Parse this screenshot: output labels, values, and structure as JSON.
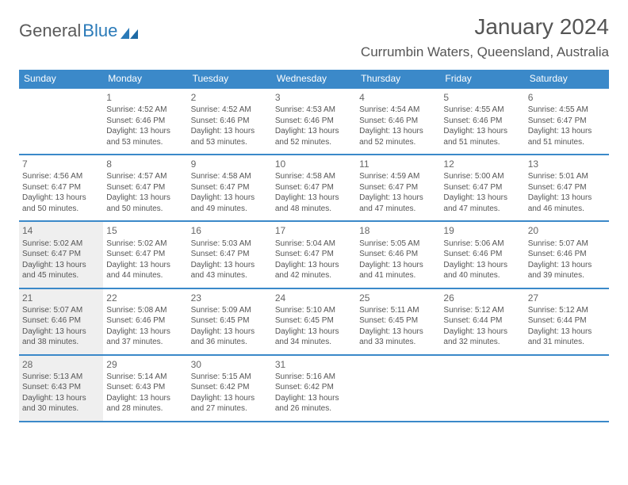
{
  "logo": {
    "word1": "General",
    "word2": "Blue"
  },
  "title": "January 2024",
  "location": "Currumbin Waters, Queensland, Australia",
  "colors": {
    "header_bg": "#3b89c9",
    "header_text": "#ffffff",
    "border": "#3b89c9",
    "shaded_bg": "#efefef",
    "text": "#555555"
  },
  "day_headers": [
    "Sunday",
    "Monday",
    "Tuesday",
    "Wednesday",
    "Thursday",
    "Friday",
    "Saturday"
  ],
  "weeks": [
    [
      {
        "n": "",
        "sr": "",
        "ss": "",
        "dl1": "",
        "dl2": "",
        "shade": false
      },
      {
        "n": "1",
        "sr": "Sunrise: 4:52 AM",
        "ss": "Sunset: 6:46 PM",
        "dl1": "Daylight: 13 hours",
        "dl2": "and 53 minutes.",
        "shade": false
      },
      {
        "n": "2",
        "sr": "Sunrise: 4:52 AM",
        "ss": "Sunset: 6:46 PM",
        "dl1": "Daylight: 13 hours",
        "dl2": "and 53 minutes.",
        "shade": false
      },
      {
        "n": "3",
        "sr": "Sunrise: 4:53 AM",
        "ss": "Sunset: 6:46 PM",
        "dl1": "Daylight: 13 hours",
        "dl2": "and 52 minutes.",
        "shade": false
      },
      {
        "n": "4",
        "sr": "Sunrise: 4:54 AM",
        "ss": "Sunset: 6:46 PM",
        "dl1": "Daylight: 13 hours",
        "dl2": "and 52 minutes.",
        "shade": false
      },
      {
        "n": "5",
        "sr": "Sunrise: 4:55 AM",
        "ss": "Sunset: 6:46 PM",
        "dl1": "Daylight: 13 hours",
        "dl2": "and 51 minutes.",
        "shade": false
      },
      {
        "n": "6",
        "sr": "Sunrise: 4:55 AM",
        "ss": "Sunset: 6:47 PM",
        "dl1": "Daylight: 13 hours",
        "dl2": "and 51 minutes.",
        "shade": false
      }
    ],
    [
      {
        "n": "7",
        "sr": "Sunrise: 4:56 AM",
        "ss": "Sunset: 6:47 PM",
        "dl1": "Daylight: 13 hours",
        "dl2": "and 50 minutes.",
        "shade": false
      },
      {
        "n": "8",
        "sr": "Sunrise: 4:57 AM",
        "ss": "Sunset: 6:47 PM",
        "dl1": "Daylight: 13 hours",
        "dl2": "and 50 minutes.",
        "shade": false
      },
      {
        "n": "9",
        "sr": "Sunrise: 4:58 AM",
        "ss": "Sunset: 6:47 PM",
        "dl1": "Daylight: 13 hours",
        "dl2": "and 49 minutes.",
        "shade": false
      },
      {
        "n": "10",
        "sr": "Sunrise: 4:58 AM",
        "ss": "Sunset: 6:47 PM",
        "dl1": "Daylight: 13 hours",
        "dl2": "and 48 minutes.",
        "shade": false
      },
      {
        "n": "11",
        "sr": "Sunrise: 4:59 AM",
        "ss": "Sunset: 6:47 PM",
        "dl1": "Daylight: 13 hours",
        "dl2": "and 47 minutes.",
        "shade": false
      },
      {
        "n": "12",
        "sr": "Sunrise: 5:00 AM",
        "ss": "Sunset: 6:47 PM",
        "dl1": "Daylight: 13 hours",
        "dl2": "and 47 minutes.",
        "shade": false
      },
      {
        "n": "13",
        "sr": "Sunrise: 5:01 AM",
        "ss": "Sunset: 6:47 PM",
        "dl1": "Daylight: 13 hours",
        "dl2": "and 46 minutes.",
        "shade": false
      }
    ],
    [
      {
        "n": "14",
        "sr": "Sunrise: 5:02 AM",
        "ss": "Sunset: 6:47 PM",
        "dl1": "Daylight: 13 hours",
        "dl2": "and 45 minutes.",
        "shade": true
      },
      {
        "n": "15",
        "sr": "Sunrise: 5:02 AM",
        "ss": "Sunset: 6:47 PM",
        "dl1": "Daylight: 13 hours",
        "dl2": "and 44 minutes.",
        "shade": false
      },
      {
        "n": "16",
        "sr": "Sunrise: 5:03 AM",
        "ss": "Sunset: 6:47 PM",
        "dl1": "Daylight: 13 hours",
        "dl2": "and 43 minutes.",
        "shade": false
      },
      {
        "n": "17",
        "sr": "Sunrise: 5:04 AM",
        "ss": "Sunset: 6:47 PM",
        "dl1": "Daylight: 13 hours",
        "dl2": "and 42 minutes.",
        "shade": false
      },
      {
        "n": "18",
        "sr": "Sunrise: 5:05 AM",
        "ss": "Sunset: 6:46 PM",
        "dl1": "Daylight: 13 hours",
        "dl2": "and 41 minutes.",
        "shade": false
      },
      {
        "n": "19",
        "sr": "Sunrise: 5:06 AM",
        "ss": "Sunset: 6:46 PM",
        "dl1": "Daylight: 13 hours",
        "dl2": "and 40 minutes.",
        "shade": false
      },
      {
        "n": "20",
        "sr": "Sunrise: 5:07 AM",
        "ss": "Sunset: 6:46 PM",
        "dl1": "Daylight: 13 hours",
        "dl2": "and 39 minutes.",
        "shade": false
      }
    ],
    [
      {
        "n": "21",
        "sr": "Sunrise: 5:07 AM",
        "ss": "Sunset: 6:46 PM",
        "dl1": "Daylight: 13 hours",
        "dl2": "and 38 minutes.",
        "shade": true
      },
      {
        "n": "22",
        "sr": "Sunrise: 5:08 AM",
        "ss": "Sunset: 6:46 PM",
        "dl1": "Daylight: 13 hours",
        "dl2": "and 37 minutes.",
        "shade": false
      },
      {
        "n": "23",
        "sr": "Sunrise: 5:09 AM",
        "ss": "Sunset: 6:45 PM",
        "dl1": "Daylight: 13 hours",
        "dl2": "and 36 minutes.",
        "shade": false
      },
      {
        "n": "24",
        "sr": "Sunrise: 5:10 AM",
        "ss": "Sunset: 6:45 PM",
        "dl1": "Daylight: 13 hours",
        "dl2": "and 34 minutes.",
        "shade": false
      },
      {
        "n": "25",
        "sr": "Sunrise: 5:11 AM",
        "ss": "Sunset: 6:45 PM",
        "dl1": "Daylight: 13 hours",
        "dl2": "and 33 minutes.",
        "shade": false
      },
      {
        "n": "26",
        "sr": "Sunrise: 5:12 AM",
        "ss": "Sunset: 6:44 PM",
        "dl1": "Daylight: 13 hours",
        "dl2": "and 32 minutes.",
        "shade": false
      },
      {
        "n": "27",
        "sr": "Sunrise: 5:12 AM",
        "ss": "Sunset: 6:44 PM",
        "dl1": "Daylight: 13 hours",
        "dl2": "and 31 minutes.",
        "shade": false
      }
    ],
    [
      {
        "n": "28",
        "sr": "Sunrise: 5:13 AM",
        "ss": "Sunset: 6:43 PM",
        "dl1": "Daylight: 13 hours",
        "dl2": "and 30 minutes.",
        "shade": true
      },
      {
        "n": "29",
        "sr": "Sunrise: 5:14 AM",
        "ss": "Sunset: 6:43 PM",
        "dl1": "Daylight: 13 hours",
        "dl2": "and 28 minutes.",
        "shade": false
      },
      {
        "n": "30",
        "sr": "Sunrise: 5:15 AM",
        "ss": "Sunset: 6:42 PM",
        "dl1": "Daylight: 13 hours",
        "dl2": "and 27 minutes.",
        "shade": false
      },
      {
        "n": "31",
        "sr": "Sunrise: 5:16 AM",
        "ss": "Sunset: 6:42 PM",
        "dl1": "Daylight: 13 hours",
        "dl2": "and 26 minutes.",
        "shade": false
      },
      {
        "n": "",
        "sr": "",
        "ss": "",
        "dl1": "",
        "dl2": "",
        "shade": false
      },
      {
        "n": "",
        "sr": "",
        "ss": "",
        "dl1": "",
        "dl2": "",
        "shade": false
      },
      {
        "n": "",
        "sr": "",
        "ss": "",
        "dl1": "",
        "dl2": "",
        "shade": false
      }
    ]
  ]
}
